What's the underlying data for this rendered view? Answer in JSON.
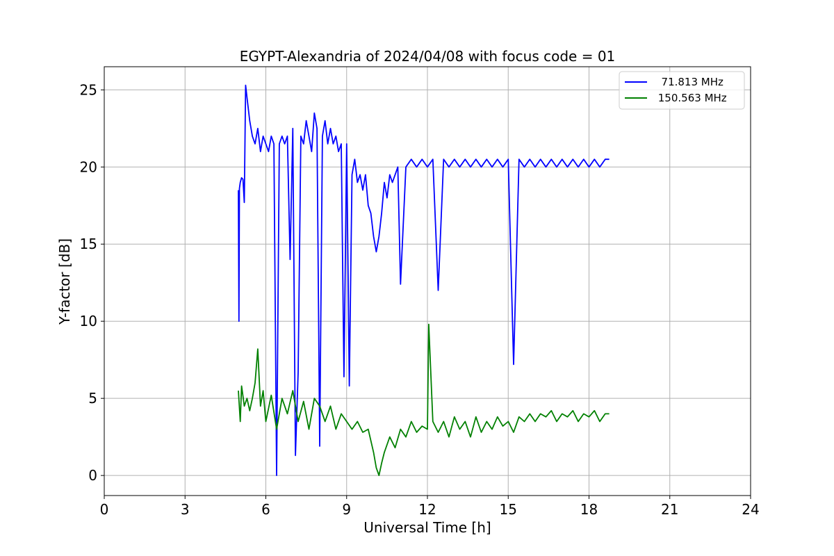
{
  "chart_data": {
    "type": "line",
    "title": "EGYPT-Alexandria of 2024/04/08 with focus code = 01",
    "xlabel": "Universal Time [h]",
    "ylabel": "Y-factor [dB]",
    "xlim": [
      0,
      24
    ],
    "ylim": [
      -1.3,
      26.5
    ],
    "xticks": [
      0,
      3,
      6,
      9,
      12,
      15,
      18,
      21,
      24
    ],
    "yticks": [
      0,
      5,
      10,
      15,
      20,
      25
    ],
    "grid": true,
    "legend_position": "upper-right",
    "series": [
      {
        "name": "  71.813 MHz",
        "color": "#0000ff",
        "x": [
          4.98,
          5.0,
          5.02,
          5.05,
          5.1,
          5.15,
          5.2,
          5.25,
          5.3,
          5.4,
          5.5,
          5.6,
          5.7,
          5.8,
          5.9,
          6.0,
          6.1,
          6.2,
          6.3,
          6.4,
          6.5,
          6.6,
          6.7,
          6.8,
          6.9,
          7.0,
          7.1,
          7.2,
          7.3,
          7.4,
          7.5,
          7.6,
          7.7,
          7.8,
          7.9,
          8.0,
          8.1,
          8.2,
          8.3,
          8.4,
          8.5,
          8.6,
          8.7,
          8.8,
          8.9,
          9.0,
          9.1,
          9.2,
          9.3,
          9.4,
          9.5,
          9.6,
          9.7,
          9.8,
          9.9,
          10.0,
          10.1,
          10.2,
          10.3,
          10.4,
          10.5,
          10.6,
          10.7,
          10.8,
          10.9,
          11.0,
          11.2,
          11.4,
          11.6,
          11.8,
          12.0,
          12.2,
          12.4,
          12.6,
          12.8,
          13.0,
          13.2,
          13.4,
          13.6,
          13.8,
          14.0,
          14.2,
          14.4,
          14.6,
          14.8,
          15.0,
          15.2,
          15.4,
          15.6,
          15.8,
          16.0,
          16.2,
          16.4,
          16.6,
          16.8,
          17.0,
          17.2,
          17.4,
          17.6,
          17.8,
          18.0,
          18.2,
          18.4,
          18.6,
          18.75
        ],
        "y": [
          18.5,
          10.0,
          18.6,
          19.0,
          19.3,
          19.2,
          17.7,
          25.3,
          24.5,
          23.0,
          22.0,
          21.5,
          22.5,
          21.0,
          22.0,
          21.5,
          21.0,
          22.0,
          21.5,
          0.0,
          21.5,
          22.0,
          21.5,
          22.0,
          14.0,
          22.5,
          1.3,
          6.7,
          22.0,
          21.5,
          23.0,
          22.0,
          21.0,
          23.5,
          22.5,
          1.9,
          22.0,
          23.0,
          21.5,
          22.5,
          21.5,
          22.0,
          21.0,
          21.5,
          6.4,
          21.5,
          5.8,
          19.5,
          20.5,
          19.0,
          19.5,
          18.5,
          19.5,
          17.5,
          17.0,
          15.5,
          14.5,
          15.5,
          17.0,
          19.0,
          18.0,
          19.5,
          19.0,
          19.5,
          20.0,
          12.4,
          20.0,
          20.5,
          20.0,
          20.5,
          20.0,
          20.5,
          12.0,
          20.5,
          20.0,
          20.5,
          20.0,
          20.5,
          20.0,
          20.5,
          20.0,
          20.5,
          20.0,
          20.5,
          20.0,
          20.5,
          7.2,
          20.5,
          20.0,
          20.5,
          20.0,
          20.5,
          20.0,
          20.5,
          20.0,
          20.5,
          20.0,
          20.5,
          20.0,
          20.5,
          20.0,
          20.5,
          20.0,
          20.5,
          20.5
        ]
      },
      {
        "name": " 150.563 MHz",
        "color": "#008000",
        "x": [
          4.98,
          5.05,
          5.1,
          5.2,
          5.3,
          5.4,
          5.5,
          5.6,
          5.7,
          5.8,
          5.9,
          6.0,
          6.2,
          6.4,
          6.6,
          6.8,
          7.0,
          7.2,
          7.4,
          7.6,
          7.8,
          8.0,
          8.2,
          8.4,
          8.6,
          8.8,
          9.0,
          9.2,
          9.4,
          9.6,
          9.8,
          10.0,
          10.1,
          10.2,
          10.3,
          10.4,
          10.6,
          10.8,
          11.0,
          11.2,
          11.4,
          11.6,
          11.8,
          12.0,
          12.05,
          12.2,
          12.4,
          12.6,
          12.8,
          13.0,
          13.2,
          13.4,
          13.6,
          13.8,
          14.0,
          14.2,
          14.4,
          14.6,
          14.8,
          15.0,
          15.2,
          15.4,
          15.6,
          15.8,
          16.0,
          16.2,
          16.4,
          16.6,
          16.8,
          17.0,
          17.2,
          17.4,
          17.6,
          17.8,
          18.0,
          18.2,
          18.4,
          18.6,
          18.75
        ],
        "y": [
          5.5,
          3.5,
          5.8,
          4.5,
          5.0,
          4.2,
          5.0,
          6.0,
          8.2,
          4.5,
          5.5,
          3.5,
          5.2,
          3.0,
          5.0,
          4.0,
          5.5,
          3.5,
          4.8,
          3.0,
          5.0,
          4.5,
          3.5,
          4.5,
          3.0,
          4.0,
          3.5,
          3.0,
          3.5,
          2.8,
          3.0,
          1.5,
          0.5,
          0.0,
          0.8,
          1.5,
          2.5,
          1.8,
          3.0,
          2.5,
          3.5,
          2.8,
          3.2,
          3.0,
          9.8,
          3.5,
          2.8,
          3.5,
          2.5,
          3.8,
          3.0,
          3.5,
          2.5,
          3.8,
          2.8,
          3.5,
          3.0,
          3.8,
          3.2,
          3.5,
          2.8,
          3.8,
          3.5,
          4.0,
          3.5,
          4.0,
          3.8,
          4.2,
          3.5,
          4.0,
          3.8,
          4.2,
          3.5,
          4.0,
          3.8,
          4.2,
          3.5,
          4.0,
          4.0
        ]
      }
    ]
  }
}
